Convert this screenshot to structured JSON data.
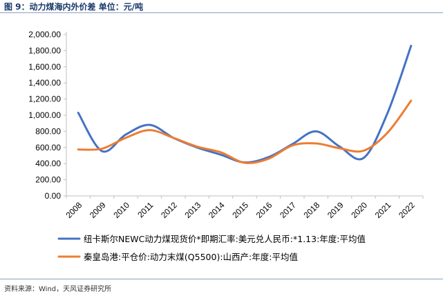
{
  "figure_title": "图 9：动力煤海内外价差  单位：元/吨",
  "source": "资料来源：Wind，天风证券研究所",
  "colors": {
    "series_1": "#4472c4",
    "series_2": "#ed7d31",
    "title": "#1a3a6b"
  },
  "chart_data": {
    "type": "line",
    "title": "",
    "xlabel": "",
    "ylabel": "",
    "x": [
      "2008",
      "2009",
      "2010",
      "2011",
      "2012",
      "2013",
      "2014",
      "2015",
      "2016",
      "2017",
      "2018",
      "2019",
      "2020",
      "2021",
      "2022"
    ],
    "ylim": [
      0,
      2000
    ],
    "yticks": [
      "0.00",
      "200.00",
      "400.00",
      "600.00",
      "800.00",
      "1,000.00",
      "1,200.00",
      "1,400.00",
      "1,600.00",
      "1,800.00",
      "2,000.00"
    ],
    "grid": false,
    "legend_position": "bottom",
    "series": [
      {
        "name": "纽卡斯尔NEWC动力煤现货价*即期汇率:美元兑人民币:*1.13:年度:平均值",
        "values": [
          1030,
          555,
          760,
          880,
          720,
          600,
          510,
          415,
          480,
          640,
          800,
          610,
          470,
          1020,
          1860
        ]
      },
      {
        "name": "秦皇岛港:平仓价:动力末煤(Q5500):山西产:年度:平均值",
        "values": [
          575,
          585,
          720,
          815,
          720,
          610,
          540,
          410,
          460,
          625,
          650,
          590,
          560,
          780,
          1180
        ]
      }
    ]
  }
}
